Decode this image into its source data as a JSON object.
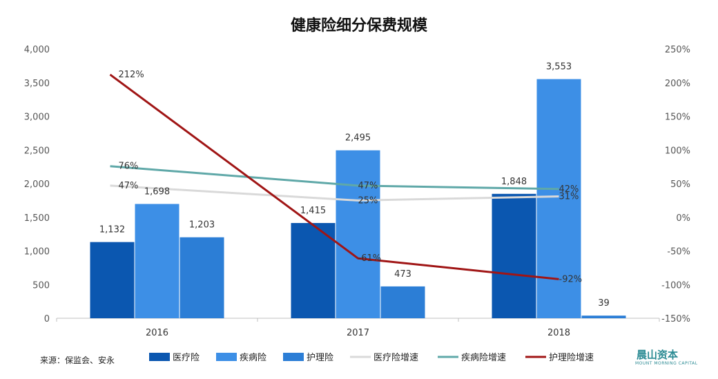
{
  "chart_data": {
    "type": "bar",
    "title": "健康险细分保费规模",
    "categories": [
      "2016",
      "2017",
      "2018"
    ],
    "y_left": {
      "ylim": [
        0,
        4000
      ],
      "ticks": [
        "0",
        "500",
        "1,000",
        "1,500",
        "2,000",
        "2,500",
        "3,000",
        "3,500",
        "4,000"
      ]
    },
    "y_right": {
      "ylim": [
        -150,
        250
      ],
      "ticks": [
        "-150%",
        "-100%",
        "-50%",
        "0%",
        "50%",
        "100%",
        "150%",
        "200%",
        "250%"
      ]
    },
    "bar_series": [
      {
        "name": "医疗险",
        "color": "#0b57b0",
        "values": [
          1132,
          1415,
          1848
        ],
        "labels": [
          "1,132",
          "1,415",
          "1,848"
        ]
      },
      {
        "name": "疾病险",
        "color": "#3d8fe6",
        "values": [
          1698,
          2495,
          3553
        ],
        "labels": [
          "1,698",
          "2,495",
          "3,553"
        ]
      },
      {
        "name": "护理险",
        "color": "#2c7ed6",
        "values": [
          1203,
          473,
          39
        ],
        "labels": [
          "1,203",
          "473",
          "39"
        ]
      }
    ],
    "line_series": [
      {
        "name": "医疗险增速",
        "color": "#d9d9d9",
        "values": [
          47,
          25,
          31
        ],
        "labels": [
          "47%",
          "25%",
          "31%"
        ]
      },
      {
        "name": "疾病险增速",
        "color": "#5fa8a8",
        "values": [
          76,
          47,
          42
        ],
        "labels": [
          "76%",
          "47%",
          "42%"
        ]
      },
      {
        "name": "护理险增速",
        "color": "#a01515",
        "values": [
          212,
          -61,
          -92
        ],
        "labels": [
          "212%",
          "-61%",
          "-92%"
        ]
      }
    ],
    "legend_position": "bottom",
    "grid": false
  },
  "source": "来源：保监会、安永",
  "logo": {
    "main": "晨山资本",
    "sub": "MOUNT MORNING CAPITAL"
  }
}
